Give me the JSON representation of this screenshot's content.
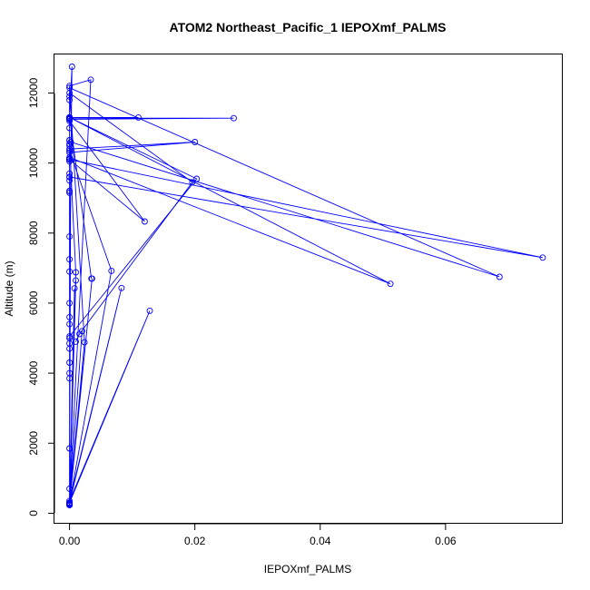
{
  "chart_data": {
    "type": "line",
    "title": "ATOM2 Northeast_Pacific_1 IEPOXmf_PALMS",
    "xlabel": "IEPOXmf_PALMS",
    "ylabel": "Altitude (m)",
    "xlim": [
      -0.0024,
      0.0787
    ],
    "ylim": [
      -300,
      13100
    ],
    "xticks": [
      0.0,
      0.02,
      0.04,
      0.06
    ],
    "xtick_labels": [
      "0.00",
      "0.02",
      "0.04",
      "0.06"
    ],
    "yticks": [
      0,
      2000,
      4000,
      6000,
      8000,
      10000,
      12000
    ],
    "ytick_labels": [
      "0",
      "2000",
      "4000",
      "6000",
      "8000",
      "10000",
      "12000"
    ],
    "series_color": "#0000ff",
    "marker": "open-circle",
    "series": [
      {
        "x": [
          0.0,
          0.0,
          0.0,
          0.0686,
          0.0002,
          0.0,
          0.0,
          0.0004,
          0.0,
          0.0,
          0.0,
          0.0,
          0.0,
          0.0,
          0.001,
          0.0,
          0.0,
          0.0,
          0.0,
          0.02,
          0.0,
          0.0,
          0.0,
          0.0,
          0.0,
          0.0,
          0.0,
          0.012,
          0.0,
          0.0,
          0.0,
          0.0,
          0.0,
          0.0067,
          0.0,
          0.0,
          0.0035,
          0.0,
          0.0,
          0.0262,
          0.0,
          0.0,
          0.011,
          0.0,
          0.0,
          0.0,
          0.0,
          0.0,
          0.0,
          0.0,
          0.0,
          0.0,
          0.0,
          0.0,
          0.0,
          0.0,
          0.0,
          0.0,
          0.0755,
          0.0,
          0.0,
          0.0512,
          0.0,
          0.0,
          0.0,
          0.0203,
          0.0,
          0.0,
          0.0,
          0.0,
          0.0,
          0.0,
          0.0,
          0.0,
          0.0,
          0.0,
          0.0,
          0.0,
          0.0,
          0.0,
          0.0,
          0.0,
          0.0,
          0.0,
          0.0,
          0.0,
          0.0,
          0.0,
          0.0,
          0.0
        ],
        "y": [
          250,
          300,
          12150,
          6750,
          10600,
          280,
          11300,
          12750,
          6900,
          10050,
          700,
          9200,
          11000,
          10550,
          6880,
          290,
          240,
          260,
          10400,
          10600,
          10300,
          11280,
          11250,
          230,
          1850,
          9700,
          10100,
          8330,
          11200,
          10500,
          9150,
          11300,
          300,
          6920,
          10350,
          11300,
          6700,
          11300,
          11280,
          11280,
          11250,
          11300,
          11300,
          11300,
          11250,
          11260,
          9500,
          11300,
          11300,
          11280,
          11260,
          11270,
          11300,
          11300,
          11290,
          10120,
          10100,
          9600,
          7300,
          10100,
          10160,
          6550,
          11300,
          9600,
          11300,
          9550,
          5050,
          4850,
          10650,
          11300,
          11300,
          10650,
          9200,
          7900,
          7250,
          6000,
          5600,
          5400,
          5000,
          4700,
          4300,
          4000,
          3850,
          300,
          250,
          300,
          240,
          250,
          260,
          250
        ]
      },
      {
        "x": [
          0.0,
          0.002,
          0.0,
          0.0128,
          0.0,
          0.0083,
          0.0,
          0.0036,
          0.0,
          0.0008,
          0.0,
          0.0034,
          0.0,
          0.0024,
          0.0,
          0.001,
          0.0
        ],
        "y": [
          300,
          5200,
          300,
          5780,
          350,
          6430,
          300,
          6700,
          260,
          6420,
          300,
          12380,
          12200,
          4880,
          250,
          6650,
          280
        ]
      },
      {
        "x": [
          0.001,
          0.0016,
          0.0196,
          0.0,
          0.0,
          0.0
        ],
        "y": [
          4900,
          5120,
          9450,
          12000,
          11900,
          11800
        ]
      }
    ]
  }
}
